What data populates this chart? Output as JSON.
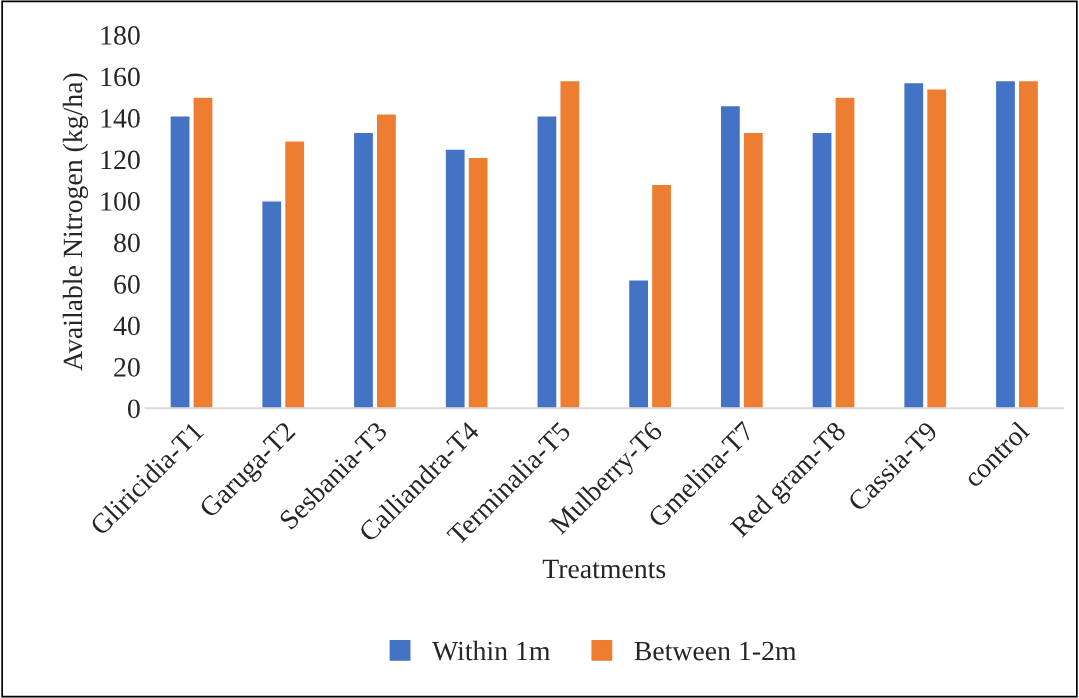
{
  "chart_data": {
    "type": "bar",
    "xlabel": "Treatments",
    "ylabel": "Available Nitrogen (kg/ha)",
    "categories": [
      "Gliricidia-T1",
      "Garuga-T2",
      "Sesbania-T3",
      "Calliandra-T4",
      "Terminalia-T5",
      "Mulberry-T6",
      "Gmelina-T7",
      "Red gram-T8",
      "Cassia-T9",
      "control"
    ],
    "series": [
      {
        "name": "Within 1m",
        "color": "#4472c4",
        "values": [
          141,
          100,
          133,
          125,
          141,
          62,
          146,
          133,
          157,
          158
        ]
      },
      {
        "name": "Between 1-2m",
        "color": "#ed7d31",
        "values": [
          150,
          129,
          142,
          121,
          158,
          108,
          133,
          150,
          154,
          158
        ]
      }
    ],
    "ylim": [
      0,
      180
    ],
    "yticks": [
      0,
      20,
      40,
      60,
      80,
      100,
      120,
      140,
      160,
      180
    ],
    "grid": false,
    "legend": "bottom"
  }
}
